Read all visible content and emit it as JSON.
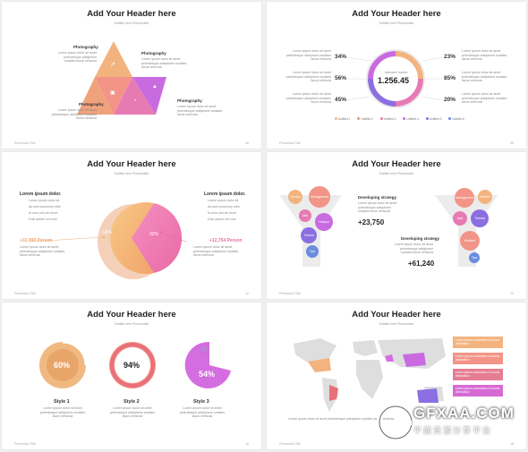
{
  "common": {
    "header": "Add Your Header here",
    "subtitle": "Subtitle here Placeholder",
    "footer": "Presentasi Title",
    "lorem": "Lorem ipsum dolor sit amet pelentesque adelpisem sodales lacus vehicula"
  },
  "slide1": {
    "labels": [
      "Photography",
      "Photography",
      "Photography",
      "Photography"
    ],
    "page": "06",
    "colors": [
      "#f3b37f",
      "#f29487",
      "#e67bb3",
      "#c86be0"
    ]
  },
  "slide2": {
    "center_label": "Awesome number",
    "center_value": "1.256.45",
    "left_pcts": [
      "34%",
      "56%",
      "45%"
    ],
    "right_pcts": [
      "23%",
      "85%",
      "20%"
    ],
    "legend": [
      "Untitled 1",
      "Untitled 2",
      "Untitled 3",
      "Untitled 4",
      "Untitled 5",
      "Untitled 6"
    ],
    "legend_colors": [
      "#f3b37f",
      "#f29487",
      "#e67bb3",
      "#c86be0",
      "#8b6fe0",
      "#6a8ce0"
    ],
    "page": "08"
  },
  "slide3": {
    "left_title": "Lorem ipsum dolor.",
    "right_title": "Lorem ipsum dolor.",
    "left_value": "+32,490 Person",
    "right_value": "+12,754 Person",
    "pie_left": "68%",
    "pie_right": "32%",
    "list": [
      "Lorem ipsum dolor sit",
      "Ad sed nonummy nibh",
      "In eros sint vel rinort",
      "Duis autem vel eum"
    ],
    "page": "12"
  },
  "slide4": {
    "left_bubbles": [
      "Service",
      "Management",
      "Idea",
      "Hotspot",
      "Tutorial",
      "Tips"
    ],
    "right_bubbles": [
      "Management",
      "Service",
      "Idea",
      "Tutorial",
      "Wetland",
      "Tips"
    ],
    "strategy1": "Developing strategy",
    "value1": "+23,750",
    "strategy2": "Developing strategy",
    "value2": "+61,240",
    "page": "14"
  },
  "slide5": {
    "values": [
      "60%",
      "94%",
      "54%"
    ],
    "styles": [
      "Style 1",
      "Style 2",
      "Style 3"
    ],
    "page": "16"
  },
  "slide6": {
    "boxes": [
      "Lorem ipsum consectetur & mundo domination",
      "Lorem ipsum consectetur & mundo domination",
      "Lorem ipsum consectetur & mundo domination",
      "Lorem ipsum consectetur & mundo domination"
    ],
    "box_colors": [
      "#f3b37f",
      "#f29487",
      "#e57d92",
      "#d66ad4"
    ],
    "page": "18"
  },
  "watermark": {
    "logo": "GFXAA.COM",
    "cn": "平面资源分享平台"
  }
}
